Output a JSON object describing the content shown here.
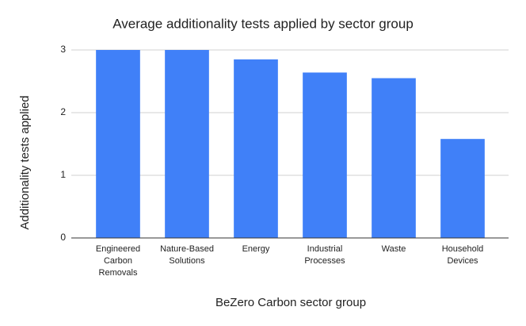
{
  "chart_data": {
    "type": "bar",
    "title": "Average additionality tests applied by sector group",
    "x_label": "BeZero Carbon sector group",
    "y_label": "Additionality tests applied",
    "categories": [
      "Engineered Carbon Removals",
      "Nature-Based Solutions",
      "Energy",
      "Industrial Processes",
      "Waste",
      "Household Devices"
    ],
    "values": [
      3,
      3,
      2.85,
      2.64,
      2.55,
      1.58
    ],
    "color": "#4080f8",
    "ylim": [
      0,
      3
    ],
    "yticks": [
      0,
      1,
      2,
      3
    ],
    "grid": true
  }
}
